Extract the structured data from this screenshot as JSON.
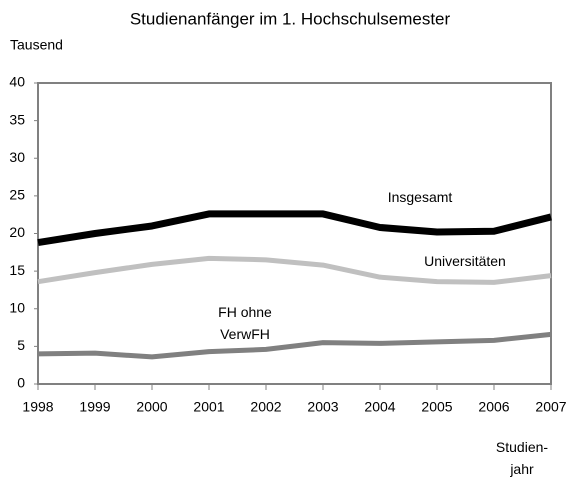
{
  "chart_data": {
    "type": "line",
    "title": "Studienanfänger im 1. Hochschulsemester",
    "y_label": "Tausend",
    "x_label": "Studien- jahr",
    "categories": [
      "1998",
      "1999",
      "2000",
      "2001",
      "2002",
      "2003",
      "2004",
      "2005",
      "2006",
      "2007"
    ],
    "series": [
      {
        "name": "Insgesamt",
        "color": "#000000",
        "values": [
          18.8,
          20.0,
          21.0,
          22.6,
          22.6,
          22.6,
          20.8,
          20.2,
          20.3,
          22.2
        ]
      },
      {
        "name": "Universitäten",
        "color": "#c0c0c0",
        "values": [
          13.6,
          14.8,
          15.9,
          16.7,
          16.5,
          15.8,
          14.2,
          13.6,
          13.5,
          14.4
        ]
      },
      {
        "name": "FH ohne VerwFH",
        "color": "#808080",
        "values": [
          4.0,
          4.1,
          3.6,
          4.3,
          4.6,
          5.5,
          5.4,
          5.6,
          5.8,
          6.6
        ]
      }
    ],
    "ylim": [
      0,
      40
    ],
    "yticks": [
      0,
      5,
      10,
      15,
      20,
      25,
      30,
      35,
      40
    ],
    "grid": false
  }
}
